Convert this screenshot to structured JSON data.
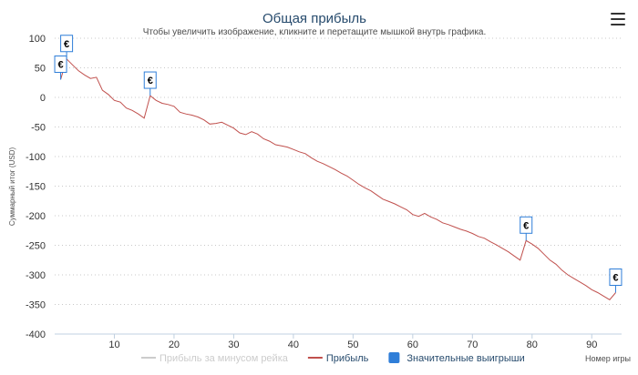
{
  "chart_data": {
    "type": "line",
    "title": "Общая прибыль",
    "subtitle": "Чтобы увеличить изображение, кликните и перетащите мышкой внутрь графика.",
    "xlabel": "Номер игры",
    "ylabel": "Суммарный итог (USD)",
    "xlim": [
      0,
      95
    ],
    "ylim": [
      -400,
      100
    ],
    "x_ticks": [
      10,
      20,
      30,
      40,
      50,
      60,
      70,
      80,
      90
    ],
    "y_ticks": [
      100,
      50,
      0,
      -50,
      -100,
      -150,
      -200,
      -250,
      -300,
      -350,
      -400
    ],
    "grid": true,
    "legend_position": "bottom-center",
    "series": [
      {
        "name": "Прибыль за минусом рейка",
        "color": "#cccccc",
        "visible": false,
        "points": []
      },
      {
        "name": "Прибыль",
        "color": "#c0504d",
        "visible": true,
        "points": [
          [
            1,
            30
          ],
          [
            2,
            65
          ],
          [
            3,
            55
          ],
          [
            4,
            45
          ],
          [
            5,
            38
          ],
          [
            6,
            32
          ],
          [
            7,
            34
          ],
          [
            8,
            12
          ],
          [
            9,
            5
          ],
          [
            10,
            -5
          ],
          [
            11,
            -8
          ],
          [
            12,
            -18
          ],
          [
            13,
            -22
          ],
          [
            14,
            -28
          ],
          [
            15,
            -35
          ],
          [
            16,
            3
          ],
          [
            17,
            -5
          ],
          [
            18,
            -10
          ],
          [
            19,
            -12
          ],
          [
            20,
            -15
          ],
          [
            21,
            -25
          ],
          [
            22,
            -28
          ],
          [
            23,
            -30
          ],
          [
            24,
            -33
          ],
          [
            25,
            -38
          ],
          [
            26,
            -45
          ],
          [
            27,
            -44
          ],
          [
            28,
            -42
          ],
          [
            29,
            -47
          ],
          [
            30,
            -52
          ],
          [
            31,
            -60
          ],
          [
            32,
            -63
          ],
          [
            33,
            -58
          ],
          [
            34,
            -62
          ],
          [
            35,
            -70
          ],
          [
            36,
            -74
          ],
          [
            37,
            -80
          ],
          [
            38,
            -82
          ],
          [
            39,
            -84
          ],
          [
            40,
            -88
          ],
          [
            41,
            -92
          ],
          [
            42,
            -95
          ],
          [
            43,
            -102
          ],
          [
            44,
            -108
          ],
          [
            45,
            -112
          ],
          [
            46,
            -117
          ],
          [
            47,
            -122
          ],
          [
            48,
            -128
          ],
          [
            49,
            -133
          ],
          [
            50,
            -140
          ],
          [
            51,
            -147
          ],
          [
            52,
            -153
          ],
          [
            53,
            -158
          ],
          [
            54,
            -165
          ],
          [
            55,
            -172
          ],
          [
            56,
            -176
          ],
          [
            57,
            -180
          ],
          [
            58,
            -185
          ],
          [
            59,
            -190
          ],
          [
            60,
            -198
          ],
          [
            61,
            -201
          ],
          [
            62,
            -196
          ],
          [
            63,
            -202
          ],
          [
            64,
            -206
          ],
          [
            65,
            -212
          ],
          [
            66,
            -215
          ],
          [
            67,
            -219
          ],
          [
            68,
            -223
          ],
          [
            69,
            -226
          ],
          [
            70,
            -230
          ],
          [
            71,
            -235
          ],
          [
            72,
            -238
          ],
          [
            73,
            -244
          ],
          [
            74,
            -249
          ],
          [
            75,
            -255
          ],
          [
            76,
            -261
          ],
          [
            77,
            -268
          ],
          [
            78,
            -275
          ],
          [
            79,
            -242
          ],
          [
            80,
            -248
          ],
          [
            81,
            -255
          ],
          [
            82,
            -265
          ],
          [
            83,
            -275
          ],
          [
            84,
            -282
          ],
          [
            85,
            -292
          ],
          [
            86,
            -300
          ],
          [
            87,
            -306
          ],
          [
            88,
            -312
          ],
          [
            89,
            -318
          ],
          [
            90,
            -325
          ],
          [
            91,
            -330
          ],
          [
            92,
            -336
          ],
          [
            93,
            -342
          ],
          [
            94,
            -330
          ]
        ]
      },
      {
        "name": "Значительные выигрыши",
        "color": "#2f7ed8",
        "marker_symbol": "€",
        "points": [
          [
            1,
            30
          ],
          [
            2,
            65
          ],
          [
            16,
            3
          ],
          [
            79,
            -242
          ],
          [
            94,
            -330
          ]
        ]
      }
    ]
  }
}
